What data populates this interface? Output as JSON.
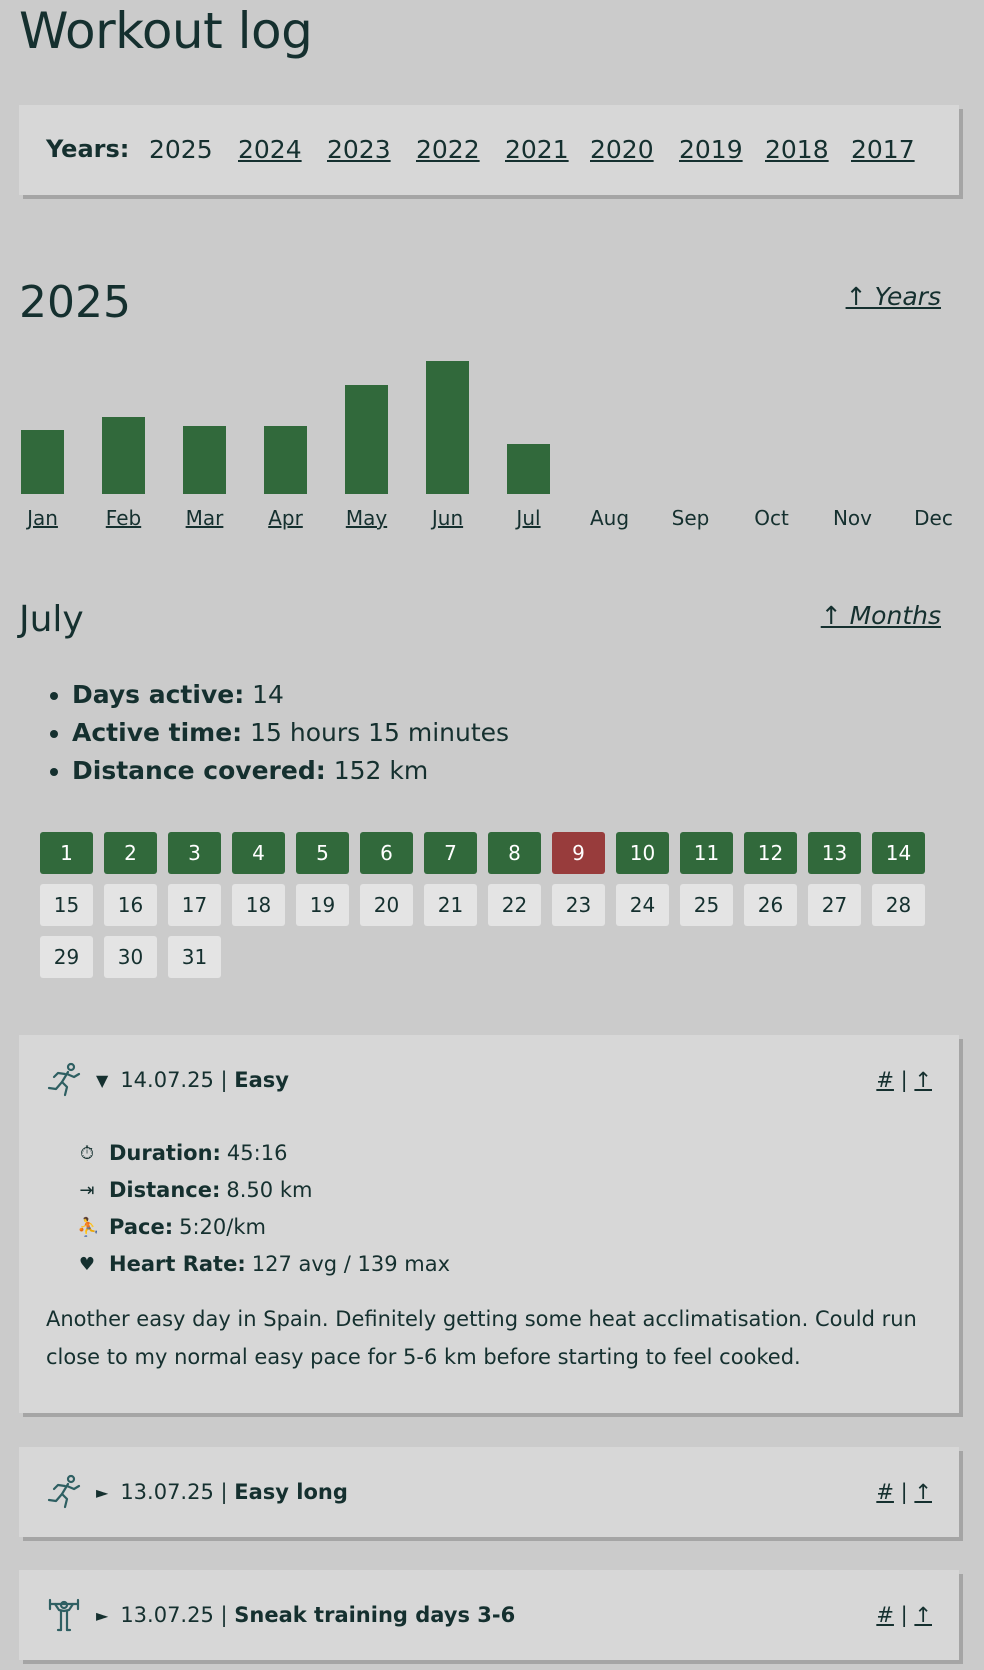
{
  "page_title": "Workout log",
  "years_nav": {
    "label": "Years:",
    "years": [
      {
        "label": "2025",
        "link": false
      },
      {
        "label": "2024",
        "link": true
      },
      {
        "label": "2023",
        "link": true
      },
      {
        "label": "2022",
        "link": true
      },
      {
        "label": "2021",
        "link": true
      },
      {
        "label": "2020",
        "link": true
      },
      {
        "label": "2019",
        "link": true
      },
      {
        "label": "2018",
        "link": true
      },
      {
        "label": "2017",
        "link": true
      }
    ]
  },
  "year_section": {
    "title": "2025",
    "up_link": "↑ Years"
  },
  "chart_data": {
    "type": "bar",
    "categories": [
      "Jan",
      "Feb",
      "Mar",
      "Apr",
      "May",
      "Jun",
      "Jul",
      "Aug",
      "Sep",
      "Oct",
      "Nov",
      "Dec"
    ],
    "values": [
      64,
      77,
      68,
      68,
      109,
      133,
      50,
      0,
      0,
      0,
      0,
      0
    ],
    "linked": [
      true,
      true,
      true,
      true,
      true,
      true,
      true,
      false,
      false,
      false,
      false,
      false
    ],
    "selected": "Jul",
    "bar_color": "#31693b",
    "title": "",
    "xlabel": "",
    "ylabel": ""
  },
  "month_section": {
    "title": "July",
    "up_link": "↑ Months",
    "stats": [
      {
        "label": "Days active:",
        "value": "14"
      },
      {
        "label": "Active time:",
        "value": "15 hours 15 minutes"
      },
      {
        "label": "Distance covered:",
        "value": "152 km"
      }
    ]
  },
  "calendar": {
    "days": [
      "1",
      "2",
      "3",
      "4",
      "5",
      "6",
      "7",
      "8",
      "9",
      "10",
      "11",
      "12",
      "13",
      "14",
      "15",
      "16",
      "17",
      "18",
      "19",
      "20",
      "21",
      "22",
      "23",
      "24",
      "25",
      "26",
      "27",
      "28",
      "29",
      "30",
      "31"
    ],
    "active_days": [
      "1",
      "2",
      "3",
      "4",
      "5",
      "6",
      "7",
      "8",
      "10",
      "11",
      "12",
      "13",
      "14"
    ],
    "rest_days_red": [
      "9"
    ],
    "active_color": "#31693b",
    "red_color": "#983c3c"
  },
  "entries": [
    {
      "icon": "running-icon",
      "expanded": true,
      "toggle": "▼",
      "date": "14.07.25 |",
      "title": "Easy",
      "anchor": "#",
      "sep": "|",
      "up": "↑",
      "metrics": [
        {
          "icon": "stopwatch-icon",
          "glyph": "⏱",
          "label": "Duration:",
          "value": "45:16"
        },
        {
          "icon": "distance-icon",
          "glyph": "⇥",
          "label": "Distance:",
          "value": "8.50 km"
        },
        {
          "icon": "pace-icon",
          "glyph": "⛹",
          "label": "Pace:",
          "value": "5:20/km"
        },
        {
          "icon": "heart-icon",
          "glyph": "♥",
          "label": "Heart Rate:",
          "value": "127 avg / 139 max"
        }
      ],
      "notes": "Another easy day in Spain. Definitely getting some heat acclimatisation. Could run close to my normal easy pace for 5-6 km before starting to feel cooked."
    },
    {
      "icon": "running-icon",
      "expanded": false,
      "toggle": "►",
      "date": "13.07.25 |",
      "title": "Easy long",
      "anchor": "#",
      "sep": "|",
      "up": "↑"
    },
    {
      "icon": "weightlifting-icon",
      "expanded": false,
      "toggle": "►",
      "date": "13.07.25 |",
      "title": "Sneak training days 3-6",
      "anchor": "#",
      "sep": "|",
      "up": "↑"
    }
  ]
}
